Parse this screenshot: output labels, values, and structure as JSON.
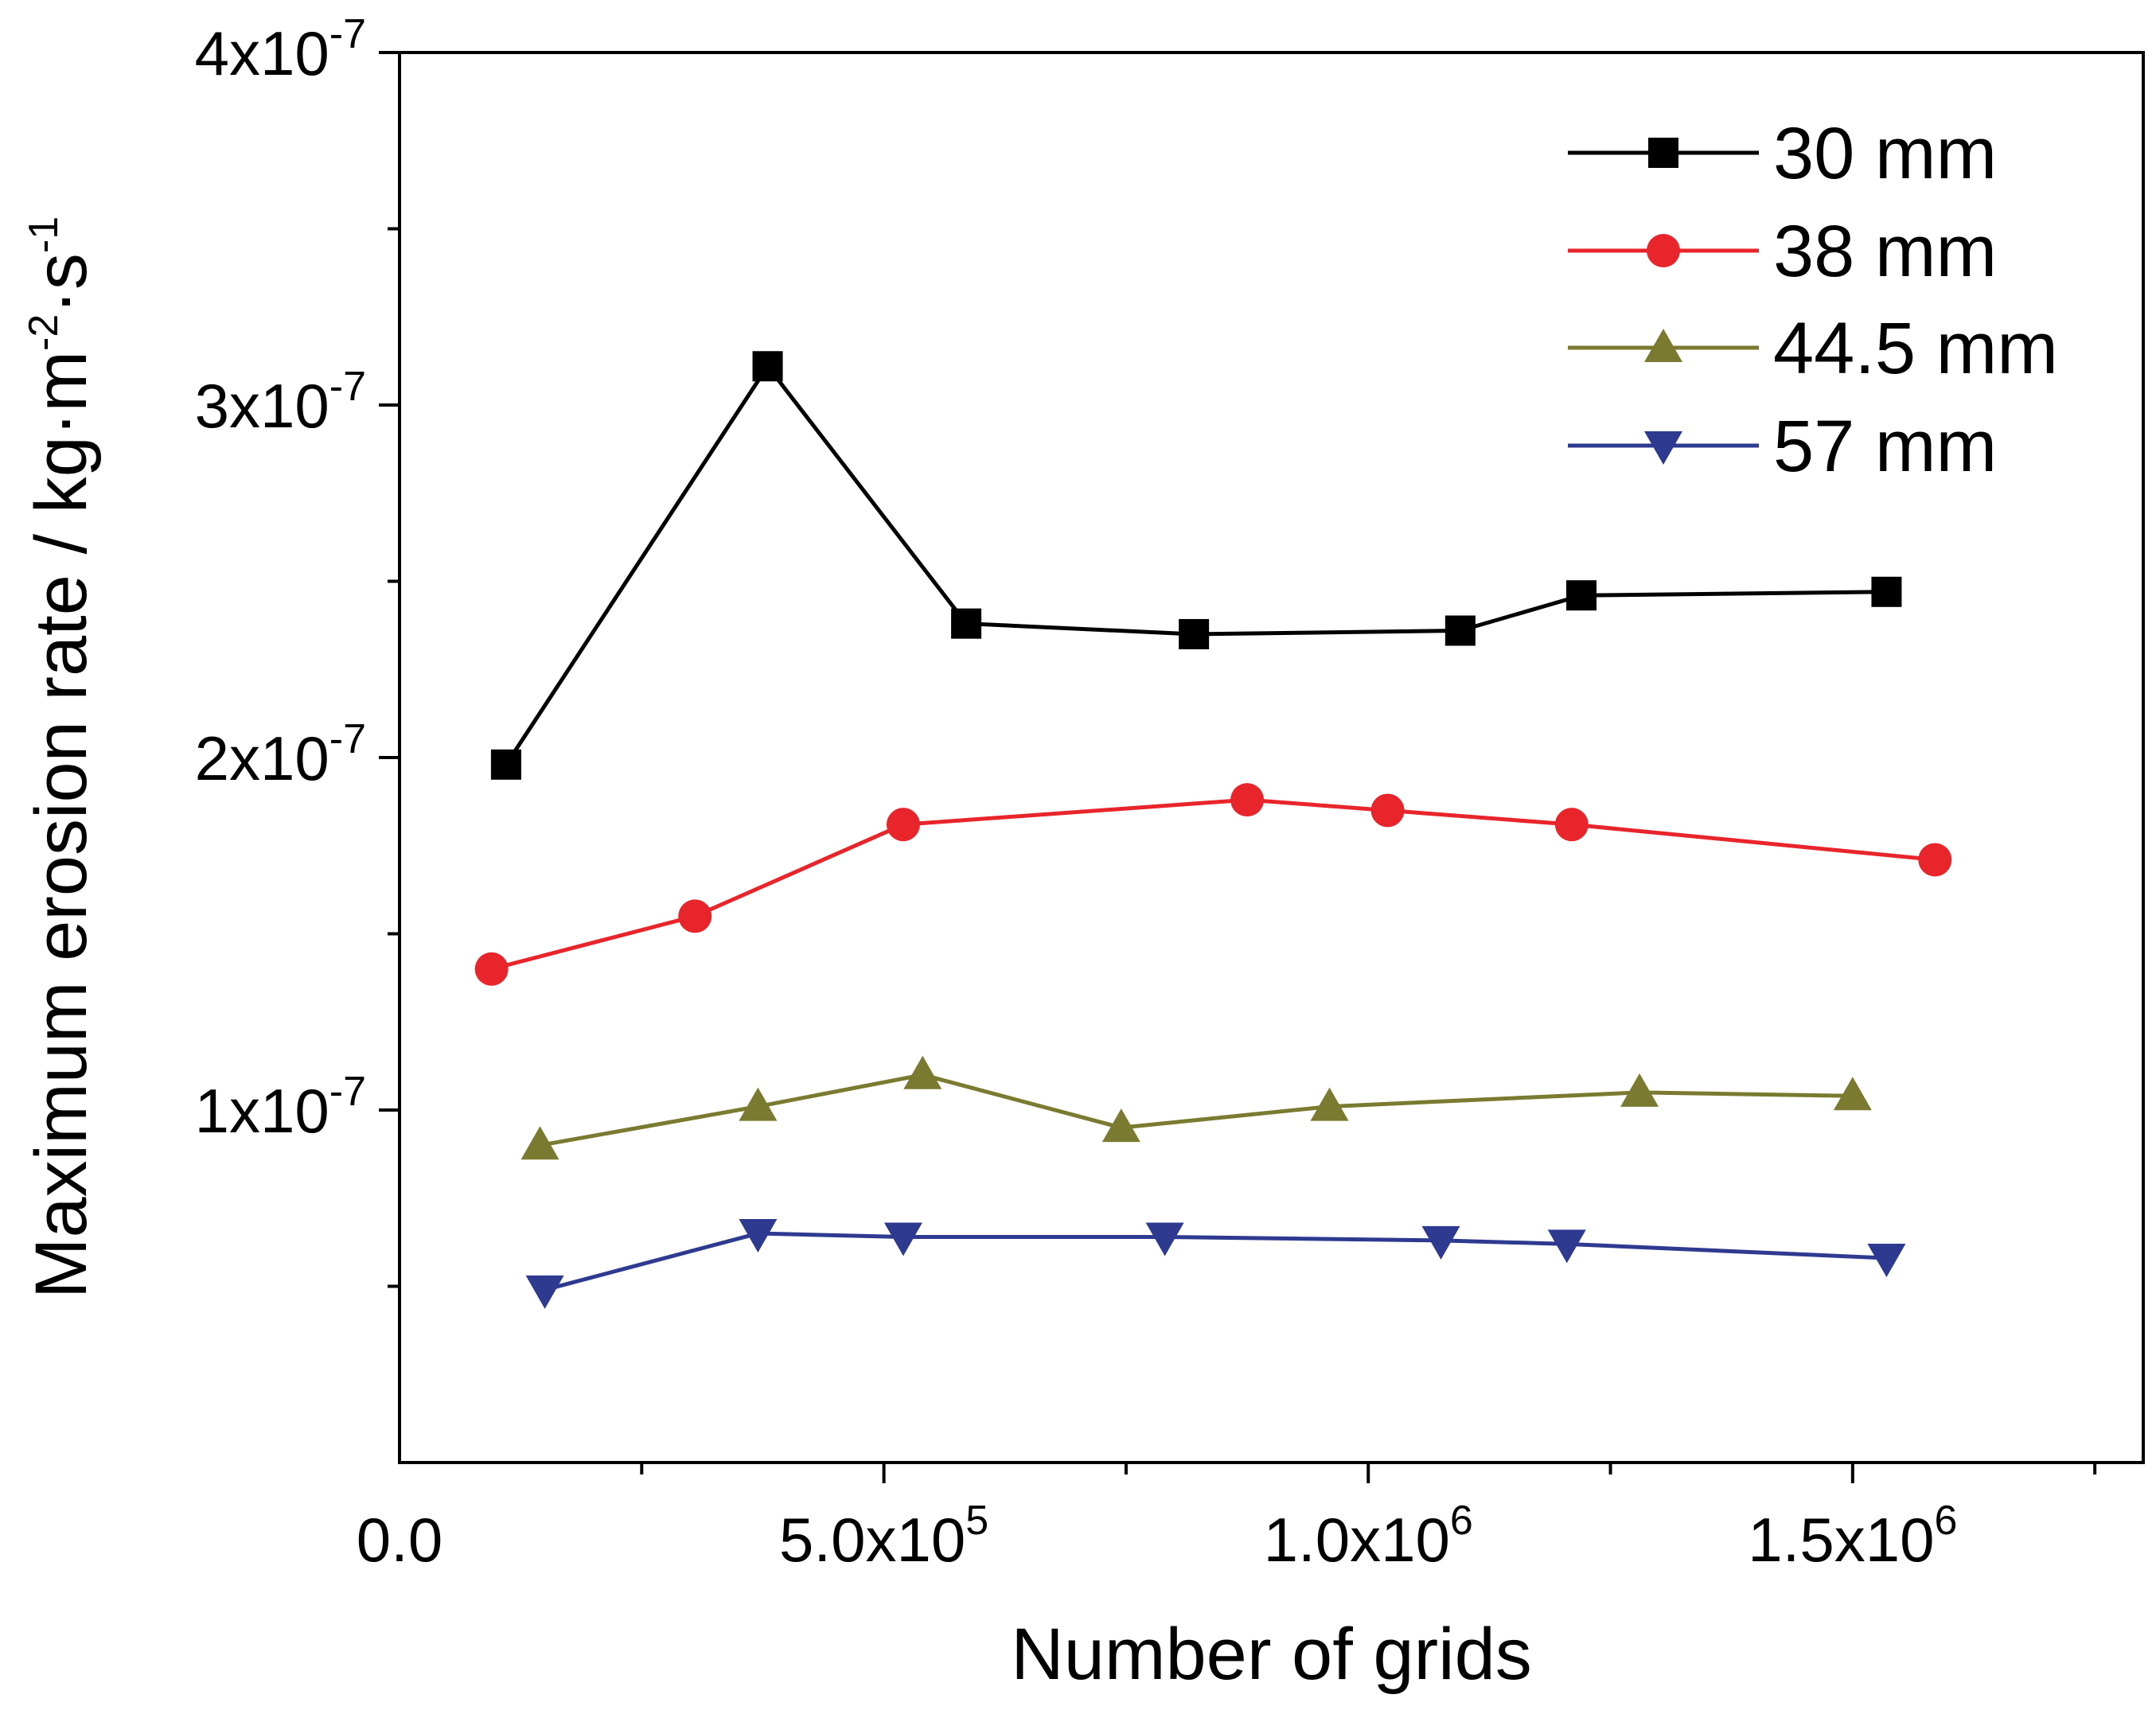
{
  "chart_data": {
    "type": "line",
    "xlabel": "Number of grids",
    "ylabel": {
      "base": "Maximum erosion rate / kg·m",
      "exp1": "-2",
      "mid": "·s",
      "exp2": "-1"
    },
    "xlim": [
      0,
      1800000
    ],
    "ylim": [
      0,
      4e-07
    ],
    "x_ticks": [
      {
        "value": 0,
        "mantissa": "0.0",
        "exp": ""
      },
      {
        "value": 500000,
        "mantissa": "5.0x10",
        "exp": "5"
      },
      {
        "value": 1000000,
        "mantissa": "1.0x10",
        "exp": "6"
      },
      {
        "value": 1500000,
        "mantissa": "1.5x10",
        "exp": "6"
      }
    ],
    "x_minor_ticks": [
      250000,
      750000,
      1250000,
      1750000
    ],
    "y_ticks": [
      {
        "value": 1e-07,
        "mantissa": "1x10",
        "exp": "-7"
      },
      {
        "value": 2e-07,
        "mantissa": "2x10",
        "exp": "-7"
      },
      {
        "value": 3e-07,
        "mantissa": "3x10",
        "exp": "-7"
      },
      {
        "value": 4e-07,
        "mantissa": "4x10",
        "exp": "-7"
      }
    ],
    "y_minor_ticks": [
      5e-08,
      1.5e-07,
      2.5e-07,
      3.5e-07
    ],
    "legend_position": "top-right",
    "series": [
      {
        "name": "30 mm",
        "color": "#000000",
        "marker": "square",
        "x": [
          110000,
          380000,
          585000,
          820000,
          1095000,
          1220000,
          1535000
        ],
        "y": [
          1.98e-07,
          3.11e-07,
          2.38e-07,
          2.35e-07,
          2.36e-07,
          2.46e-07,
          2.47e-07
        ]
      },
      {
        "name": "38 mm",
        "color": "#e8252b",
        "marker": "circle",
        "x": [
          95000,
          305000,
          520000,
          875000,
          1020000,
          1210000,
          1585000
        ],
        "y": [
          1.4e-07,
          1.55e-07,
          1.81e-07,
          1.88e-07,
          1.85e-07,
          1.81e-07,
          1.71e-07
        ]
      },
      {
        "name": "44.5 mm",
        "color": "#7a7a30",
        "marker": "triangle-up",
        "x": [
          145000,
          370000,
          540000,
          745000,
          960000,
          1280000,
          1500000
        ],
        "y": [
          9e-08,
          1.01e-07,
          1.1e-07,
          9.5e-08,
          1.01e-07,
          1.05e-07,
          1.04e-07
        ]
      },
      {
        "name": "57 mm",
        "color": "#2e3a8f",
        "marker": "triangle-down",
        "x": [
          150000,
          370000,
          520000,
          790000,
          1075000,
          1205000,
          1535000
        ],
        "y": [
          4.9e-08,
          6.5e-08,
          6.4e-08,
          6.4e-08,
          6.3e-08,
          6.2e-08,
          5.8e-08
        ]
      }
    ]
  }
}
